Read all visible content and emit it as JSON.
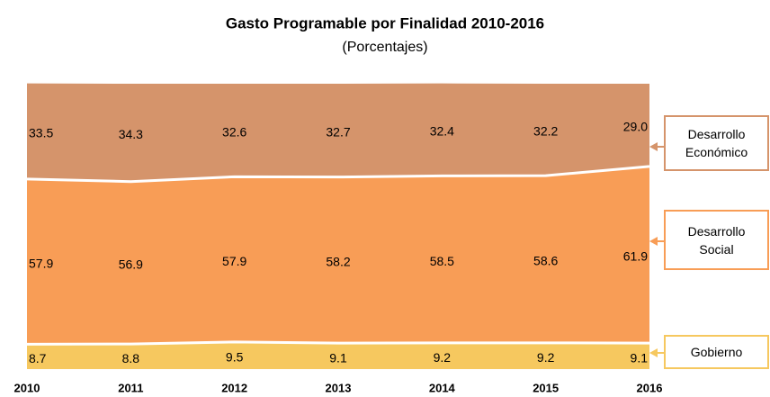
{
  "chart_data": {
    "type": "area",
    "stacked": true,
    "title": "Gasto Programable por Finalidad 2010-2016",
    "subtitle": "(Porcentajes)",
    "x": [
      2010,
      2011,
      2012,
      2013,
      2014,
      2015,
      2016
    ],
    "xlim": [
      2010,
      2016
    ],
    "ylim": [
      0,
      100
    ],
    "series": [
      {
        "name": "Gobierno",
        "color": "#f6c85f",
        "values": [
          8.7,
          8.8,
          9.5,
          9.1,
          9.2,
          9.2,
          9.1
        ]
      },
      {
        "name": "Desarrollo Social",
        "color": "#f89d56",
        "values": [
          57.9,
          56.9,
          57.9,
          58.2,
          58.5,
          58.6,
          61.9
        ]
      },
      {
        "name": "Desarrollo Económico",
        "color": "#d5946b",
        "values": [
          33.5,
          34.3,
          32.6,
          32.7,
          32.4,
          32.2,
          29.0
        ],
        "value_labels": [
          "33.5",
          "34.3",
          "32.6",
          "32.7",
          "32.4",
          "32.2",
          "29.0"
        ]
      }
    ]
  }
}
